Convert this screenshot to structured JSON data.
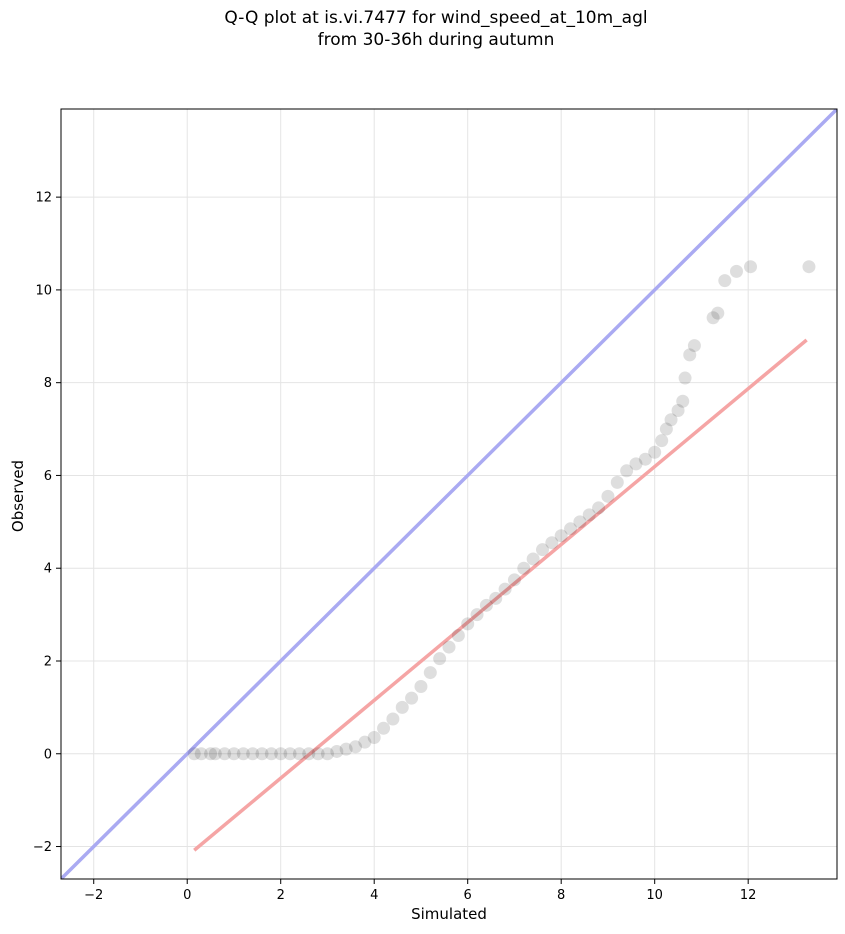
{
  "chart_data": {
    "type": "scatter",
    "title": "Q-Q plot at is.vi.7477 for wind_speed_at_10m_agl",
    "subtitle": "from 30-36h during autumn",
    "xlabel": "Simulated",
    "ylabel": "Observed",
    "xlim": [
      -2.7,
      13.9
    ],
    "ylim": [
      -2.7,
      13.9
    ],
    "x_ticks": [
      -2,
      0,
      2,
      4,
      6,
      8,
      10,
      12
    ],
    "y_ticks": [
      -2,
      0,
      2,
      4,
      6,
      8,
      10,
      12
    ],
    "x_tick_labels": [
      "−2",
      "0",
      "2",
      "4",
      "6",
      "8",
      "10",
      "12"
    ],
    "y_tick_labels": [
      "−2",
      "0",
      "2",
      "4",
      "6",
      "8",
      "10",
      "12"
    ],
    "grid": true,
    "reference_line": {
      "x": [
        -2.7,
        13.9
      ],
      "y": [
        -2.7,
        13.9
      ],
      "color": "#aaaaf2"
    },
    "fit_line": {
      "x": [
        0.15,
        13.25
      ],
      "y": [
        -2.08,
        8.92
      ],
      "color": "#f5a5a5"
    },
    "point_color": "#000000",
    "series": [
      {
        "points": [
          [
            0.15,
            0
          ],
          [
            0.3,
            0
          ],
          [
            0.5,
            0
          ],
          [
            0.6,
            0
          ],
          [
            0.8,
            0
          ],
          [
            1.0,
            0
          ],
          [
            1.2,
            0
          ],
          [
            1.4,
            0
          ],
          [
            1.6,
            0
          ],
          [
            1.8,
            0
          ],
          [
            2.0,
            0
          ],
          [
            2.2,
            0
          ],
          [
            2.4,
            0
          ],
          [
            2.6,
            0
          ],
          [
            2.8,
            0
          ],
          [
            3.0,
            0
          ],
          [
            3.2,
            0.05
          ],
          [
            3.4,
            0.1
          ],
          [
            3.6,
            0.15
          ],
          [
            3.8,
            0.25
          ],
          [
            4.0,
            0.35
          ],
          [
            4.2,
            0.55
          ],
          [
            4.4,
            0.75
          ],
          [
            4.6,
            1.0
          ],
          [
            4.8,
            1.2
          ],
          [
            5.0,
            1.45
          ],
          [
            5.2,
            1.75
          ],
          [
            5.4,
            2.05
          ],
          [
            5.6,
            2.3
          ],
          [
            5.8,
            2.55
          ],
          [
            6.0,
            2.8
          ],
          [
            6.2,
            3.0
          ],
          [
            6.4,
            3.2
          ],
          [
            6.6,
            3.35
          ],
          [
            6.8,
            3.55
          ],
          [
            7.0,
            3.75
          ],
          [
            7.2,
            4.0
          ],
          [
            7.4,
            4.2
          ],
          [
            7.6,
            4.4
          ],
          [
            7.8,
            4.55
          ],
          [
            8.0,
            4.7
          ],
          [
            8.2,
            4.85
          ],
          [
            8.4,
            5.0
          ],
          [
            8.6,
            5.15
          ],
          [
            8.8,
            5.3
          ],
          [
            9.0,
            5.55
          ],
          [
            9.2,
            5.85
          ],
          [
            9.4,
            6.1
          ],
          [
            9.6,
            6.25
          ],
          [
            9.8,
            6.35
          ],
          [
            10.0,
            6.5
          ],
          [
            10.15,
            6.75
          ],
          [
            10.25,
            7.0
          ],
          [
            10.35,
            7.2
          ],
          [
            10.5,
            7.4
          ],
          [
            10.6,
            7.6
          ],
          [
            10.65,
            8.1
          ],
          [
            10.75,
            8.6
          ],
          [
            10.85,
            8.8
          ],
          [
            11.25,
            9.4
          ],
          [
            11.35,
            9.5
          ],
          [
            11.5,
            10.2
          ],
          [
            11.75,
            10.4
          ],
          [
            12.05,
            10.5
          ],
          [
            13.3,
            10.5
          ]
        ]
      }
    ]
  }
}
